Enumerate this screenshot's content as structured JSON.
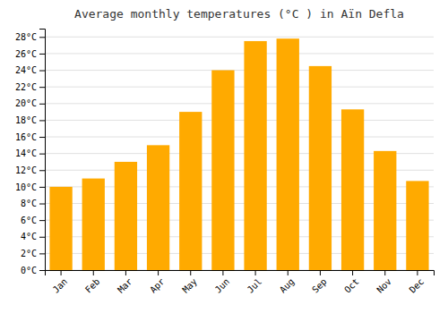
{
  "chart_data": {
    "type": "bar",
    "title": "Average monthly temperatures (°C ) in Aïn Defla",
    "categories": [
      "Jan",
      "Feb",
      "Mar",
      "Apr",
      "May",
      "Jun",
      "Jul",
      "Aug",
      "Sep",
      "Oct",
      "Nov",
      "Dec"
    ],
    "values": [
      10,
      11,
      13,
      15,
      19,
      24,
      27.5,
      27.8,
      24.5,
      19.3,
      14.3,
      10.7
    ],
    "color": "#FFAA00",
    "ylim": [
      0,
      29
    ],
    "yticks": [
      {
        "value": 0,
        "label": "0°C"
      },
      {
        "value": 2,
        "label": "2°C"
      },
      {
        "value": 4,
        "label": "4°C"
      },
      {
        "value": 6,
        "label": "6°C"
      },
      {
        "value": 8,
        "label": "8°C"
      },
      {
        "value": 10,
        "label": "10°C"
      },
      {
        "value": 12,
        "label": "12°C"
      },
      {
        "value": 14,
        "label": "14°C"
      },
      {
        "value": 16,
        "label": "16°C"
      },
      {
        "value": 18,
        "label": "18°C"
      },
      {
        "value": 20,
        "label": "20°C"
      },
      {
        "value": 22,
        "label": "22°C"
      },
      {
        "value": 24,
        "label": "24°C"
      },
      {
        "value": 26,
        "label": "26°C"
      },
      {
        "value": 28,
        "label": "28°C"
      }
    ],
    "grid": true
  }
}
